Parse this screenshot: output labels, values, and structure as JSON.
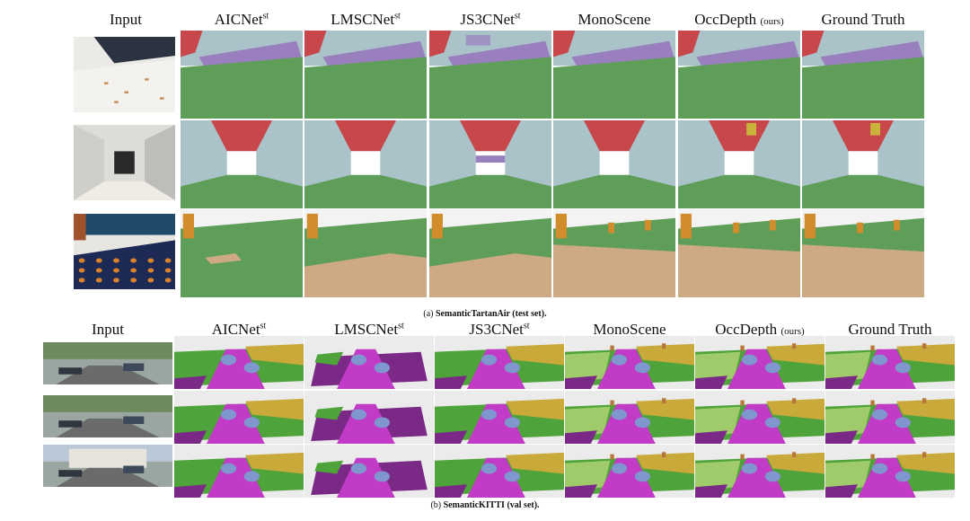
{
  "panel_a": {
    "headers": [
      {
        "name": "Input",
        "sup": "",
        "note": ""
      },
      {
        "name": "AICNet",
        "sup": "st",
        "note": ""
      },
      {
        "name": "LMSCNet",
        "sup": "st",
        "note": ""
      },
      {
        "name": "JS3CNet",
        "sup": "st",
        "note": ""
      },
      {
        "name": "MonoScene",
        "sup": "",
        "note": ""
      },
      {
        "name": "OccDepth",
        "sup": "",
        "note": "(ours)"
      },
      {
        "name": "Ground Truth",
        "sup": "",
        "note": ""
      }
    ],
    "caption_prefix": "(a) ",
    "caption_bold": "SemanticTartanAir (test set)."
  },
  "panel_b": {
    "headers": [
      {
        "name": "Input",
        "sup": "",
        "note": ""
      },
      {
        "name": "AICNet",
        "sup": "st",
        "note": ""
      },
      {
        "name": "LMSCNet",
        "sup": "st",
        "note": ""
      },
      {
        "name": "JS3CNet",
        "sup": "st",
        "note": ""
      },
      {
        "name": "MonoScene",
        "sup": "",
        "note": ""
      },
      {
        "name": "OccDepth",
        "sup": "",
        "note": "(ours)"
      },
      {
        "name": "Ground Truth",
        "sup": "",
        "note": ""
      }
    ],
    "caption_prefix": "(b) ",
    "caption_bold": "SemanticKITTI  (val set)."
  },
  "class_colors": {
    "wall": "#a9c3c9",
    "floor": "#5e9e58",
    "ceiling": "#c7474a",
    "object_purple": "#9a7fbf",
    "furniture": "#d18c2c",
    "carpet": "#cdaa84",
    "road": "#c13bc6",
    "sidewalk": "#7a2a86",
    "vegetation": "#4ea33a",
    "terrain": "#9fcb6a",
    "car": "#7f96cf",
    "building": "#c9a93a",
    "trunk": "#b8773a",
    "background": "#ebebeb"
  }
}
